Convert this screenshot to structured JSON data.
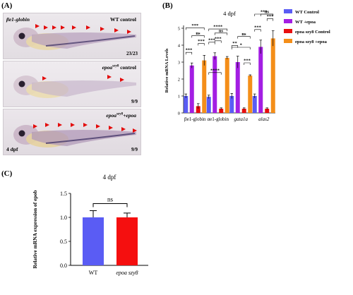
{
  "panel_a": {
    "label": "(A)",
    "photos": [
      {
        "left_tag": "βe1-globin",
        "name": "WT control",
        "count": "23/23",
        "stage": ""
      },
      {
        "left_tag": "",
        "name": "epoa",
        "name_sup": "szy8",
        "name_suffix": " control",
        "count": "9/9",
        "stage": ""
      },
      {
        "left_tag": "",
        "name": "epoa",
        "name_sup": "szy8",
        "name_suffix": "+epoa",
        "count": "9/9",
        "stage": "4 dpf"
      }
    ]
  },
  "panel_b": {
    "label": "(B)",
    "title": "4 dpf",
    "ylabel": "Relative mRNA Levels",
    "legend": [
      {
        "label": "WT Control",
        "color": "#5a5cf4"
      },
      {
        "label": "WT +epoa",
        "color": "#a31ee3"
      },
      {
        "label": "epoa szy8 Control",
        "color": "#e80f0f"
      },
      {
        "label": "epoa szy8 +epoa",
        "color": "#f48e19"
      }
    ],
    "significance": [
      {
        "group": 0,
        "pairs": [
          [
            "***",
            "0-1"
          ],
          [
            "***",
            "2-3"
          ],
          [
            "ns",
            "1-3"
          ],
          [
            "***",
            "0-3"
          ]
        ]
      },
      {
        "group": 1,
        "pairs": [
          [
            "***",
            "0-1"
          ],
          [
            "***",
            "1-2"
          ],
          [
            "ns",
            "1-3"
          ],
          [
            "****",
            "0-3"
          ],
          [
            "****",
            "0-2"
          ]
        ]
      },
      {
        "group": 2,
        "pairs": [
          [
            "**",
            "0-1"
          ],
          [
            "***",
            "2-3"
          ],
          [
            "ns",
            "1-3"
          ],
          [
            "*",
            "0-3"
          ]
        ]
      },
      {
        "group": 3,
        "pairs": [
          [
            "***",
            "0-1"
          ],
          [
            "***",
            "2-3"
          ],
          [
            "ns",
            "1-3"
          ],
          [
            "***",
            "0-3"
          ]
        ]
      }
    ]
  },
  "panel_c": {
    "label": "(C)",
    "title": "4 dpf",
    "ylabel": "Relative mRNA expression of epob",
    "sig": "ns"
  },
  "chart_data": [
    {
      "type": "bar",
      "title": "4 dpf",
      "ylabel": "Relative mRNA Levels",
      "categories": [
        "βe1-globin",
        "αe1-globin",
        "gata1a",
        "alas2"
      ],
      "series": [
        {
          "name": "WT Control",
          "values": [
            1.0,
            0.95,
            1.0,
            1.0
          ],
          "errors": [
            0.12,
            0.1,
            0.15,
            0.12
          ]
        },
        {
          "name": "WT +epoa",
          "values": [
            2.8,
            3.35,
            3.0,
            3.9
          ],
          "errors": [
            0.15,
            0.2,
            0.35,
            0.4
          ]
        },
        {
          "name": "epoa szy8 Control",
          "values": [
            0.4,
            0.25,
            0.25,
            0.25
          ],
          "errors": [
            0.15,
            0.05,
            0.05,
            0.05
          ]
        },
        {
          "name": "epoa szy8 +epoa",
          "values": [
            3.1,
            3.25,
            2.2,
            4.4
          ],
          "errors": [
            0.3,
            0.08,
            0.05,
            0.45
          ]
        }
      ],
      "ylim": [
        0,
        5
      ],
      "yticks": [
        "0",
        "1",
        "2",
        "3",
        "4",
        "5"
      ]
    },
    {
      "type": "bar",
      "title": "4 dpf",
      "ylabel": "Relative mRNA expression of epob",
      "categories": [
        "WT",
        "epoa szy8"
      ],
      "values": [
        1.0,
        1.0
      ],
      "errors": [
        0.14,
        0.09
      ],
      "colors": [
        "#5a5cf4",
        "#f50f0f"
      ],
      "ylim": [
        0,
        1.5
      ],
      "yticks": [
        "0.0",
        "0.5",
        "1.0",
        "1.5"
      ]
    }
  ]
}
